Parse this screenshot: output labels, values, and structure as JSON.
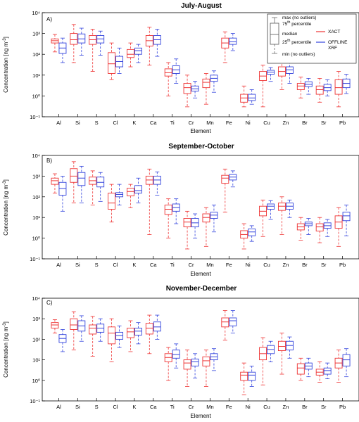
{
  "colors": {
    "xact": "#ee3333",
    "offline": "#3344dd",
    "axis": "#000000"
  },
  "chart_data": [
    {
      "type": "boxplot",
      "panel_label": "A)",
      "title": "July-August",
      "xlabel": "Element",
      "ylabel_main": "Concentration [ng m",
      "ylabel_sup": "-3",
      "ylabel_close": "]",
      "yscale": "log",
      "ylim": [
        0.1,
        10000
      ],
      "yticks": [
        "10⁻¹",
        "10⁰",
        "10¹",
        "10²",
        "10³",
        "10⁴"
      ],
      "categories": [
        "Al",
        "Si",
        "S",
        "Cl",
        "K",
        "Ca",
        "Ti",
        "Cr",
        "Mn",
        "Fe",
        "Ni",
        "Cu",
        "Zn",
        "Br",
        "Sr",
        "Pb"
      ],
      "series": [
        {
          "name": "XACT",
          "boxes": [
            [
              130,
              350,
              450,
              550,
              900
            ],
            [
              40,
              300,
              500,
              1000,
              2700
            ],
            [
              15,
              300,
              500,
              800,
              1600
            ],
            [
              6,
              12,
              35,
              120,
              350
            ],
            [
              25,
              70,
              100,
              170,
              350
            ],
            [
              30,
              250,
              450,
              800,
              2000
            ],
            [
              1,
              9,
              13,
              20,
              40
            ],
            [
              0.3,
              1.3,
              2.5,
              4,
              10
            ],
            [
              0.4,
              2.5,
              4.5,
              6.5,
              12
            ],
            [
              40,
              200,
              350,
              600,
              1200
            ],
            [
              0.3,
              0.5,
              0.8,
              1.2,
              3
            ],
            [
              0.3,
              5.5,
              9,
              15,
              30
            ],
            [
              2,
              9,
              15,
              25,
              50
            ],
            [
              0.8,
              2,
              3,
              4,
              8
            ],
            [
              0.5,
              1.2,
              2,
              3,
              7
            ],
            [
              0.3,
              1.2,
              2.5,
              6,
              15
            ]
          ]
        },
        {
          "name": "OFFLINE XRF",
          "boxes": [
            [
              40,
              110,
              200,
              350,
              600
            ],
            [
              90,
              350,
              550,
              950,
              1800
            ],
            [
              90,
              350,
              550,
              800,
              1300
            ],
            [
              12,
              25,
              45,
              80,
              200
            ],
            [
              40,
              100,
              150,
              200,
              300
            ],
            [
              80,
              300,
              500,
              800,
              1600
            ],
            [
              4,
              12,
              18,
              28,
              60
            ],
            [
              0.8,
              1.7,
              2.2,
              3,
              5
            ],
            [
              1.5,
              5,
              7,
              10,
              16
            ],
            [
              150,
              300,
              400,
              600,
              1000
            ],
            [
              0.4,
              0.6,
              0.8,
              1.2,
              2
            ],
            [
              5,
              11,
              14,
              17,
              23
            ],
            [
              4,
              12,
              18,
              25,
              45
            ],
            [
              1.2,
              2.8,
              3.6,
              4.8,
              7
            ],
            [
              1,
              1.8,
              2.5,
              3.6,
              6
            ],
            [
              1.3,
              2.5,
              4,
              6.5,
              11
            ]
          ]
        }
      ]
    },
    {
      "type": "boxplot",
      "panel_label": "B)",
      "title": "September-October",
      "xlabel": "Element",
      "ylabel_main": "Concentration [ng m",
      "ylabel_sup": "-3",
      "ylabel_close": "]",
      "yscale": "log",
      "ylim": [
        0.1,
        10000
      ],
      "yticks": [
        "10⁻¹",
        "10⁰",
        "10¹",
        "10²",
        "10³",
        "10⁴"
      ],
      "categories": [
        "Al",
        "Si",
        "S",
        "Cl",
        "K",
        "Ca",
        "Ti",
        "Cr",
        "Mn",
        "Fe",
        "Ni",
        "Cu",
        "Zn",
        "Br",
        "Sr",
        "Pb"
      ],
      "series": [
        {
          "name": "XACT",
          "boxes": [
            [
              150,
              400,
              600,
              800,
              1300
            ],
            [
              50,
              500,
              1000,
              2300,
              5000
            ],
            [
              40,
              400,
              600,
              900,
              1800
            ],
            [
              6,
              25,
              50,
              150,
              400
            ],
            [
              30,
              110,
              180,
              260,
              400
            ],
            [
              1.5,
              400,
              650,
              1000,
              2200
            ],
            [
              1,
              14,
              25,
              40,
              80
            ],
            [
              0.3,
              3.5,
              6,
              9,
              20
            ],
            [
              0.4,
              6,
              10,
              15,
              30
            ],
            [
              18,
              450,
              800,
              1100,
              2200
            ],
            [
              0.3,
              1,
              1.5,
              2.3,
              5
            ],
            [
              1.2,
              12,
              20,
              35,
              70
            ],
            [
              1.5,
              22,
              35,
              50,
              100
            ],
            [
              0.8,
              2.5,
              3.5,
              5,
              10
            ],
            [
              0.6,
              2.2,
              3.5,
              5,
              10
            ],
            [
              0.4,
              3,
              6,
              12,
              30
            ]
          ]
        },
        {
          "name": "OFFLINE XRF",
          "boxes": [
            [
              20,
              120,
              250,
              500,
              1000
            ],
            [
              50,
              350,
              800,
              1500,
              3000
            ],
            [
              60,
              300,
              500,
              900,
              1500
            ],
            [
              40,
              100,
              130,
              160,
              400
            ],
            [
              50,
              150,
              200,
              350,
              800
            ],
            [
              120,
              400,
              650,
              1000,
              1600
            ],
            [
              5,
              20,
              30,
              45,
              80
            ],
            [
              1,
              3.5,
              5.5,
              9,
              15
            ],
            [
              2,
              9,
              13,
              18,
              40
            ],
            [
              300,
              650,
              900,
              1200,
              1800
            ],
            [
              0.7,
              1.3,
              2,
              2.8,
              4
            ],
            [
              8,
              25,
              35,
              45,
              65
            ],
            [
              10,
              25,
              35,
              50,
              70
            ],
            [
              1.5,
              4,
              5,
              6,
              9
            ],
            [
              1.2,
              3,
              4,
              5.5,
              8
            ],
            [
              1.3,
              7,
              12,
              18,
              40
            ]
          ]
        }
      ]
    },
    {
      "type": "boxplot",
      "panel_label": "C)",
      "title": "November-December",
      "xlabel": "Element",
      "ylabel_main": "Concentration [ng m",
      "ylabel_sup": "-3",
      "ylabel_close": "]",
      "yscale": "log",
      "ylim": [
        0.1,
        10000
      ],
      "yticks": [
        "10⁻¹",
        "10⁰",
        "10¹",
        "10²",
        "10³",
        "10⁴"
      ],
      "categories": [
        "Al",
        "Si",
        "S",
        "Cl",
        "K",
        "Ca",
        "Ti",
        "Cr",
        "Mn",
        "Fe",
        "Ni",
        "Cu",
        "Zn",
        "Br",
        "Sr",
        "Pb"
      ],
      "series": [
        {
          "name": "XACT",
          "boxes": [
            [
              200,
              350,
              500,
              650,
              900
            ],
            [
              30,
              300,
              500,
              1000,
              2200
            ],
            [
              15,
              180,
              350,
              500,
              1300
            ],
            [
              8,
              60,
              200,
              400,
              1000
            ],
            [
              25,
              120,
              230,
              350,
              800
            ],
            [
              20,
              180,
              350,
              600,
              1500
            ],
            [
              1,
              8,
              13,
              20,
              40
            ],
            [
              0.5,
              3.5,
              7,
              10,
              30
            ],
            [
              0.5,
              5,
              9,
              14,
              30
            ],
            [
              90,
              400,
              700,
              1100,
              2500
            ],
            [
              0.2,
              1,
              1.8,
              2.5,
              7
            ],
            [
              0.6,
              10,
              20,
              40,
              120
            ],
            [
              2,
              28,
              45,
              80,
              200
            ],
            [
              1,
              2,
              4,
              6.5,
              12
            ],
            [
              0.8,
              1.8,
              2.5,
              3.5,
              8
            ],
            [
              0.8,
              4,
              7,
              12,
              30
            ]
          ]
        },
        {
          "name": "OFFLINE XRF",
          "boxes": [
            [
              25,
              70,
              110,
              170,
              300
            ],
            [
              80,
              250,
              450,
              800,
              1400
            ],
            [
              80,
              220,
              350,
              550,
              1000
            ],
            [
              40,
              100,
              150,
              220,
              450
            ],
            [
              60,
              160,
              250,
              350,
              650
            ],
            [
              100,
              250,
              400,
              700,
              1500
            ],
            [
              4,
              12,
              18,
              30,
              60
            ],
            [
              1.3,
              5,
              8,
              11,
              20
            ],
            [
              3,
              10,
              14,
              20,
              35
            ],
            [
              200,
              450,
              800,
              1100,
              2500
            ],
            [
              0.5,
              1,
              1.8,
              2.5,
              5
            ],
            [
              8,
              20,
              32,
              50,
              80
            ],
            [
              12,
              30,
              50,
              80,
              130
            ],
            [
              1.5,
              3.5,
              5,
              7,
              12
            ],
            [
              1.2,
              2,
              3,
              4,
              7
            ],
            [
              1.5,
              5,
              10,
              18,
              35
            ]
          ]
        }
      ]
    }
  ],
  "legend": {
    "max_label": "max (no outliers)",
    "p75_label": "75",
    "p75_sup": "th",
    "p75_rest": " percentile",
    "median_label": "median",
    "p25_label": "25",
    "p25_sup": "th",
    "p25_rest": " percentile",
    "min_label": "min (no outliers)",
    "xact_label": "XACT",
    "offline_line1": "OFFLINE",
    "offline_line2": "XRF"
  }
}
